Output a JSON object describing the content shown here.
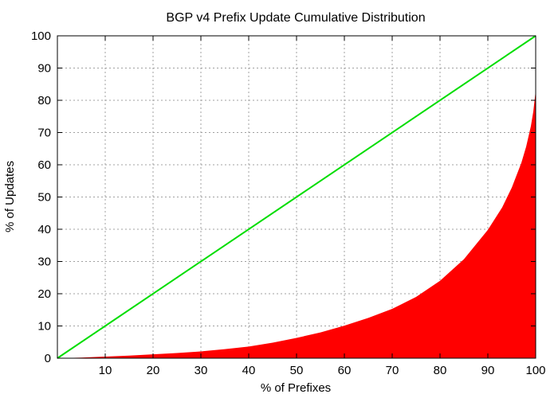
{
  "chart_data": {
    "type": "area",
    "title": "BGP v4 Prefix Update Cumulative Distribution",
    "xlabel": "% of Prefixes",
    "ylabel": "% of Updates",
    "xlim": [
      0,
      100
    ],
    "ylim": [
      0,
      100
    ],
    "x_ticks": [
      10,
      20,
      30,
      40,
      50,
      60,
      70,
      80,
      90,
      100
    ],
    "y_ticks": [
      0,
      10,
      20,
      30,
      40,
      50,
      60,
      70,
      80,
      90,
      100
    ],
    "grid": true,
    "series": [
      {
        "type": "area",
        "color": "#ff0000",
        "x": [
          0,
          5,
          10,
          15,
          20,
          25,
          30,
          35,
          40,
          45,
          50,
          55,
          60,
          65,
          70,
          75,
          80,
          85,
          90,
          93,
          95,
          97,
          98,
          99,
          99.5,
          100
        ],
        "y": [
          0,
          0.2,
          0.5,
          0.8,
          1.2,
          1.6,
          2.1,
          2.8,
          3.6,
          4.8,
          6.3,
          8.0,
          10.1,
          12.5,
          15.3,
          19.0,
          24.0,
          30.7,
          39.8,
          46.8,
          52.9,
          60.6,
          65.6,
          72.0,
          76.5,
          83.0
        ]
      },
      {
        "type": "line",
        "color": "#00dd00",
        "x": [
          0,
          100
        ],
        "y": [
          0,
          100
        ]
      }
    ]
  }
}
